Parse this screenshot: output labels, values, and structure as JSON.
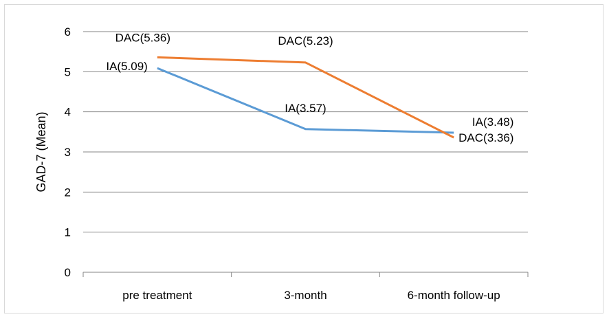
{
  "chart_data": {
    "type": "line",
    "categories": [
      "pre treatment",
      "3-month",
      "6-month follow-up"
    ],
    "series": [
      {
        "name": "IA",
        "values": [
          5.09,
          3.57,
          3.48
        ],
        "color": "#5b9bd5",
        "labels": [
          "IA(5.09)",
          "IA(3.57)",
          "IA(3.48)"
        ]
      },
      {
        "name": "DAC",
        "values": [
          5.36,
          5.23,
          3.36
        ],
        "color": "#ed7d31",
        "labels": [
          "DAC(5.36)",
          "DAC(5.23)",
          "DAC(3.36)"
        ]
      }
    ],
    "title": "",
    "xlabel": "",
    "ylabel": "GAD-7 (Mean)",
    "ylim": [
      0,
      6
    ],
    "yticks": [
      0,
      1,
      2,
      3,
      4,
      5,
      6
    ],
    "grid": true
  }
}
